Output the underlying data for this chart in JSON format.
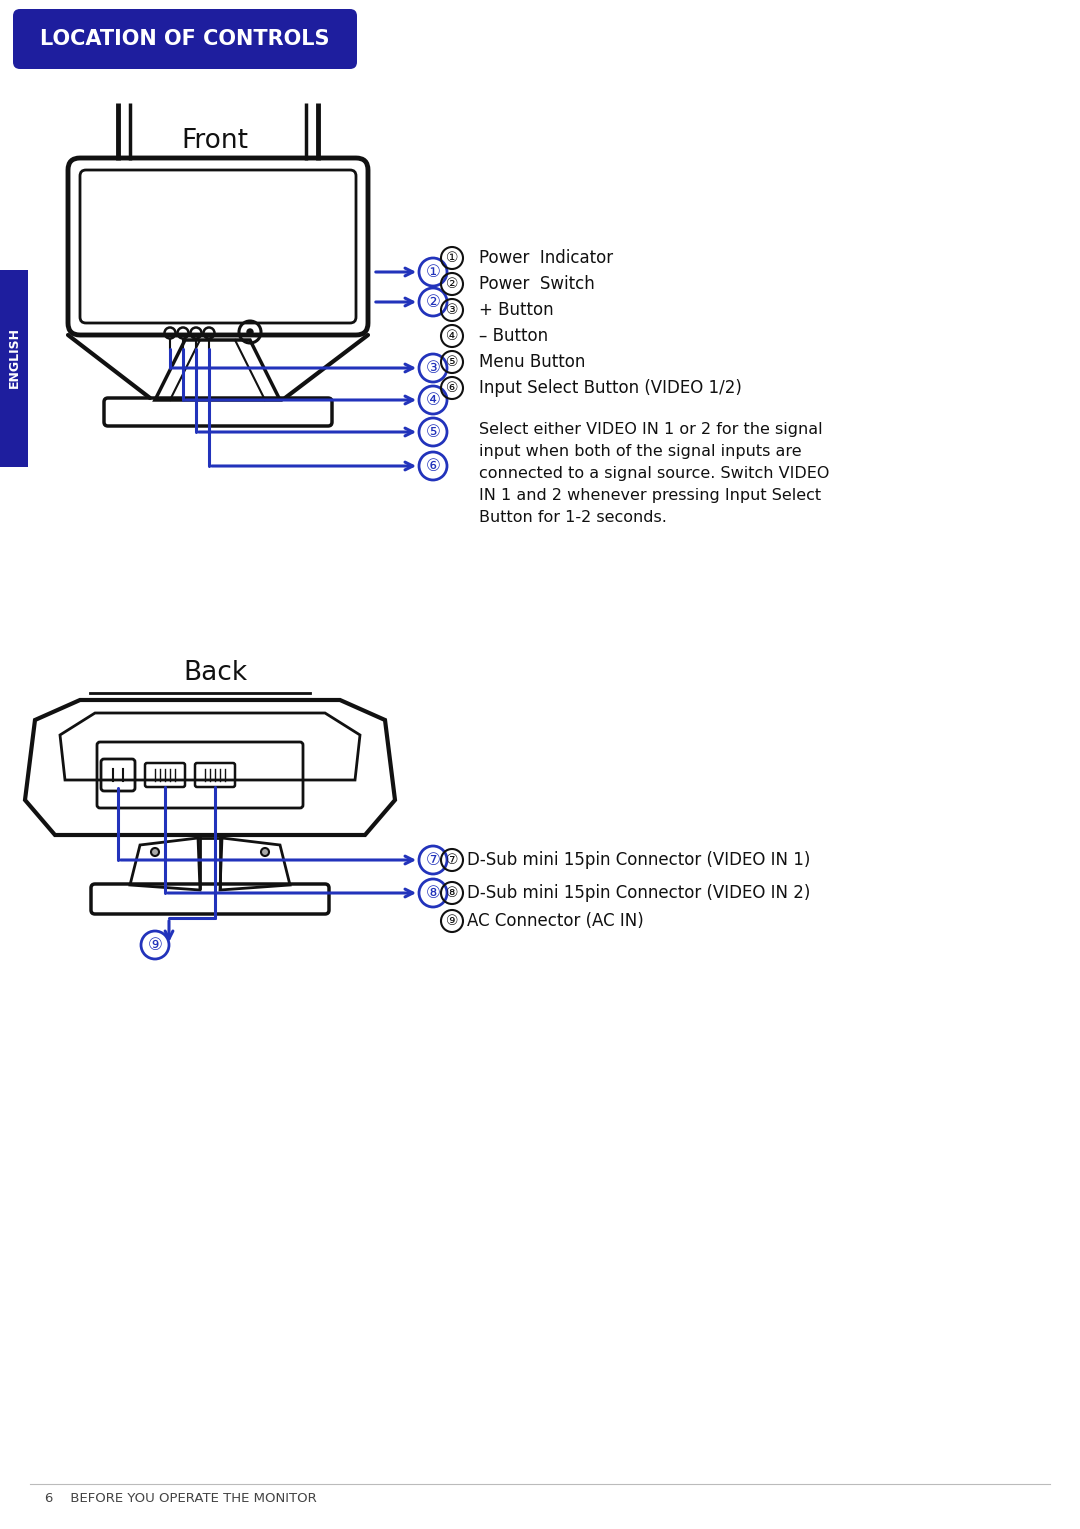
{
  "title": "LOCATION OF CONTROLS",
  "title_bg": "#1e1e9e",
  "title_text_color": "#ffffff",
  "english_label": "ENGLISH",
  "english_bg": "#1e1e9e",
  "english_text_color": "#ffffff",
  "front_label": "Front",
  "back_label": "Back",
  "blue": "#2233bb",
  "dark_blue": "#1e1e9e",
  "black": "#111111",
  "white": "#ffffff",
  "front_items": [
    {
      "text": "Power  Indicator"
    },
    {
      "text": "Power  Switch"
    },
    {
      "text": "+ Button"
    },
    {
      "text": "– Button"
    },
    {
      "text": "Menu Button"
    },
    {
      "text": "Input Select Button (VIDEO 1/2)"
    }
  ],
  "front_extra_lines": [
    "Select either VIDEO IN 1 or 2 for the signal",
    "input when both of the signal inputs are",
    "connected to a signal source. Switch VIDEO",
    "IN 1 and 2 whenever pressing Input Select",
    "Button for 1-2 seconds."
  ],
  "back_items": [
    "D-Sub mini 15pin Connector (VIDEO IN 1)",
    "D-Sub mini 15pin Connector (VIDEO IN 2)",
    "AC Connector (AC IN)"
  ],
  "footer": "6    BEFORE YOU OPERATE THE MONITOR",
  "bg_color": "#ffffff",
  "front_nums": [
    "①",
    "②",
    "③",
    "④",
    "⑤",
    "⑥"
  ],
  "back_nums": [
    "⑦",
    "⑧",
    "⑨"
  ]
}
